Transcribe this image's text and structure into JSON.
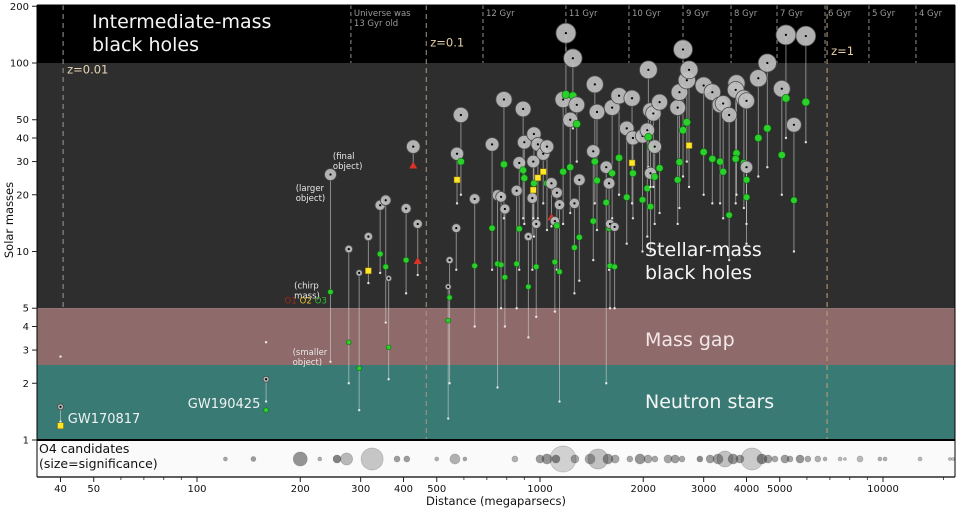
{
  "figure": {
    "background": "#ffffff"
  },
  "axes": {
    "x": {
      "label": "Distance (megaparsecs)",
      "scale": "log",
      "ticks": [
        40,
        50,
        100,
        200,
        300,
        400,
        500,
        1000,
        2000,
        3000,
        4000,
        5000,
        10000
      ],
      "minor_ticks": [
        60,
        70,
        80,
        90,
        600,
        700,
        800,
        900,
        6000,
        7000,
        8000,
        9000,
        15000
      ],
      "range_mpc": [
        34,
        16500
      ]
    },
    "y": {
      "label": "Solar masses",
      "scale": "log",
      "ticks": [
        1,
        2,
        3,
        4,
        5,
        10,
        20,
        30,
        40,
        50,
        100,
        200
      ],
      "range_msun": [
        1,
        200
      ]
    }
  },
  "bands": [
    {
      "label_lines": [
        "Intermediate-mass",
        "black holes"
      ],
      "m_range": [
        100,
        200
      ],
      "color": "#000000"
    },
    {
      "label_lines": [
        "Stellar-mass",
        "black holes"
      ],
      "m_range": [
        5,
        100
      ],
      "color": "#2f2e2e"
    },
    {
      "label_lines": [
        "Mass gap"
      ],
      "m_range": [
        2.5,
        5
      ],
      "color": "#8f6a6a"
    },
    {
      "label_lines": [
        "Neutron stars"
      ],
      "m_range": [
        1,
        2.5
      ],
      "color": "#3a7a74"
    }
  ],
  "redshift_lines": [
    {
      "label": "z=0.01",
      "d": 40.7,
      "extent": "upper",
      "line_color": "#9b9b9b",
      "label_color": "#e6d4b4",
      "label_m": 88
    },
    {
      "label": "z=0.1",
      "d": 466,
      "extent": "full",
      "line_color": "#a89a85",
      "label_color": "#e6cfa6",
      "label_m": 122
    },
    {
      "label": "z=1",
      "d": 6870,
      "extent": "full",
      "line_color": "#c2a178",
      "label_color": "#e6cfa6",
      "label_m": 110
    }
  ],
  "age_lines": {
    "line_color": "#8f8f8f",
    "label_color": "#9a9a9a",
    "items": [
      {
        "label_lines": [
          "Universe was",
          "13 Gyr old"
        ],
        "d": 281
      },
      {
        "label_lines": [
          "12 Gyr"
        ],
        "d": 682
      },
      {
        "label_lines": [
          "11 Gyr"
        ],
        "d": 1190
      },
      {
        "label_lines": [
          "10 Gyr"
        ],
        "d": 1817
      },
      {
        "label_lines": [
          "9 Gyr"
        ],
        "d": 2612
      },
      {
        "label_lines": [
          "8 Gyr"
        ],
        "d": 3606
      },
      {
        "label_lines": [
          "7 Gyr"
        ],
        "d": 4909
      },
      {
        "label_lines": [
          "6 Gyr"
        ],
        "d": 6776
      },
      {
        "label_lines": [
          "5 Gyr"
        ],
        "d": 9100
      },
      {
        "label_lines": [
          "4 Gyr"
        ],
        "d": 12475
      }
    ]
  },
  "annotations": [
    {
      "lines": [
        "GW170817"
      ],
      "d": 42,
      "m": 1.23,
      "color": "#eef2f2",
      "size": 13
    },
    {
      "lines": [
        "GW190425"
      ],
      "d": 94,
      "m": 1.48,
      "color": "#eef2f2",
      "size": 13
    },
    {
      "lines": [
        "(final",
        "object)"
      ],
      "d": 249,
      "m": 31,
      "color": "#e8e8e8",
      "size": 8.5
    },
    {
      "lines": [
        "(larger",
        "object)"
      ],
      "d": 194,
      "m": 21,
      "color": "#e8e8e8",
      "size": 8.5
    },
    {
      "lines": [
        "(chirp",
        "mass)"
      ],
      "d": 192,
      "m": 6.35,
      "color": "#e8e8e8",
      "size": 8.5
    },
    {
      "lines": [
        "(smaller",
        "object)"
      ],
      "d": 190,
      "m": 2.82,
      "color": "#e8e8e8",
      "size": 8.5
    }
  ],
  "run_legend": {
    "d": 180,
    "m": 5.3,
    "size": 8.5,
    "items": [
      {
        "label": "O1",
        "color": "#a5281b"
      },
      {
        "label": "O2",
        "color": "#e3c12c"
      },
      {
        "label": "O3",
        "color": "#2dbf2d"
      }
    ]
  },
  "marker_style": {
    "larger_fill": "#bfbfbf",
    "larger_stroke": "#4a4a4a",
    "center_dot": "#000000",
    "line_color": "#d8d8d8",
    "small_dot": "#f0f0f0",
    "runs": {
      "O1": {
        "color": "#d93425",
        "shape": "triangle"
      },
      "O2": {
        "color": "#ffe627",
        "shape": "square"
      },
      "O3": {
        "color": "#2bd12b",
        "shape": "circle"
      }
    }
  },
  "o4_strip": {
    "label_lines": [
      "O4 candidates",
      "(size=significance)"
    ],
    "label_color": "#111111",
    "background": "#fafafa",
    "bubble_color": "#404040"
  },
  "chart_data": {
    "type": "scatter",
    "xlabel": "Distance (megaparsecs)",
    "ylabel": "Solar masses",
    "x_range_mpc": [
      34,
      16500
    ],
    "y_range_msun": [
      1,
      200
    ],
    "events_fields": [
      "distance_mpc",
      "larger_mass",
      "chirp_mass",
      "smaller_mass",
      "run",
      "final_mass",
      "name"
    ],
    "events": [
      [
        40,
        1.5,
        1.19,
        1.25,
        "O2",
        2.77,
        "GW170817"
      ],
      [
        159,
        2.1,
        1.44,
        1.6,
        "O3",
        3.3,
        "GW190425"
      ],
      [
        245,
        25.6,
        6.1,
        2.6,
        "O3",
        null,
        null
      ],
      [
        277,
        10.3,
        3.3,
        2.0,
        "O3",
        null,
        null
      ],
      [
        297,
        7.7,
        2.4,
        1.44,
        "O3",
        null,
        null
      ],
      [
        316,
        12.0,
        7.9,
        6.8,
        "O2",
        null,
        null
      ],
      [
        342,
        17.6,
        9.7,
        7.7,
        "O3",
        null,
        null
      ],
      [
        355,
        18.7,
        8.3,
        4.2,
        "O3",
        null,
        null
      ],
      [
        362,
        7.2,
        3.1,
        2.1,
        "O3",
        null,
        null
      ],
      [
        407,
        16.9,
        9.0,
        6.0,
        "O3",
        null,
        null
      ],
      [
        427,
        36,
        28.6,
        29,
        "O1",
        null,
        null
      ],
      [
        440,
        14,
        8.9,
        7.5,
        "O1",
        null,
        null
      ],
      [
        573,
        33,
        24,
        18,
        "O2",
        null,
        null
      ],
      [
        545,
        9.0,
        5.7,
        2.0,
        "O3",
        null,
        null
      ],
      [
        540,
        6.5,
        4.3,
        1.3,
        "O3",
        null,
        null
      ],
      [
        588,
        53,
        30,
        20,
        "O3",
        null,
        null
      ],
      [
        570,
        13.3,
        null,
        8,
        null,
        null,
        null
      ],
      [
        645,
        19,
        8.4,
        4,
        "O3",
        null,
        null
      ],
      [
        725,
        37,
        13.3,
        8,
        "O3",
        null,
        null
      ],
      [
        752,
        19.9,
        8.6,
        1.9,
        "O3",
        null,
        null
      ],
      [
        770,
        19.5,
        8.5,
        5,
        "O3",
        null,
        null
      ],
      [
        785,
        64,
        29,
        15,
        "O3",
        null,
        null
      ],
      [
        790,
        16.8,
        7.3,
        4,
        "O3",
        null,
        null
      ],
      [
        855,
        21,
        8.6,
        5,
        "O3",
        null,
        null
      ],
      [
        870,
        29.5,
        13.2,
        8,
        "O3",
        null,
        null
      ],
      [
        893,
        57,
        27,
        15,
        "O3",
        null,
        null
      ],
      [
        900,
        38,
        24.5,
        14,
        "O3",
        null,
        null
      ],
      [
        925,
        12,
        6.5,
        3.5,
        "O3",
        null,
        null
      ],
      [
        950,
        19.2,
        null,
        8,
        null,
        null,
        null
      ],
      [
        956,
        30,
        21.2,
        15,
        "O2",
        null,
        null
      ],
      [
        960,
        42,
        23,
        12,
        "O3",
        null,
        null
      ],
      [
        975,
        14,
        8.3,
        4.5,
        "O3",
        null,
        null
      ],
      [
        986,
        37,
        24.6,
        15,
        "O2",
        null,
        null
      ],
      [
        1022,
        33,
        26.5,
        18,
        "O2",
        null,
        null
      ],
      [
        1048,
        36,
        23,
        13,
        "O3",
        null,
        null
      ],
      [
        1080,
        23,
        15.2,
        13.6,
        "O1",
        null,
        null
      ],
      [
        1105,
        14.5,
        8.8,
        4.8,
        "O3",
        null,
        null
      ],
      [
        1120,
        20.5,
        13.7,
        8,
        "O3",
        null,
        null
      ],
      [
        1140,
        17.7,
        7.8,
        1.6,
        "O3",
        null,
        null
      ],
      [
        1168,
        64,
        26.5,
        14,
        "O3",
        null,
        null
      ],
      [
        1190,
        144,
        68,
        48,
        "O3",
        null,
        null
      ],
      [
        1247,
        106,
        67,
        45,
        "O3",
        null,
        null
      ],
      [
        1225,
        50,
        28,
        16,
        "O3",
        null,
        null
      ],
      [
        1260,
        18,
        10.5,
        6,
        "O3",
        null,
        null
      ],
      [
        1280,
        60,
        47.5,
        30,
        "O3",
        null,
        null
      ],
      [
        1302,
        24,
        11.9,
        7,
        "O3",
        null,
        null
      ],
      [
        1430,
        34,
        14.5,
        9,
        "O3",
        null,
        null
      ],
      [
        1445,
        77,
        30,
        18,
        "O3",
        null,
        null
      ],
      [
        1466,
        55,
        23.8,
        13,
        "O3",
        null,
        null
      ],
      [
        1560,
        28,
        18.2,
        2.0,
        "O3",
        null,
        null
      ],
      [
        1590,
        23,
        13.3,
        8,
        "O3",
        null,
        null
      ],
      [
        1600,
        14,
        8.4,
        5,
        "O3",
        null,
        null
      ],
      [
        1623,
        58,
        26,
        15,
        "O3",
        null,
        null
      ],
      [
        1650,
        13.5,
        8.3,
        5,
        "O3",
        null,
        null
      ],
      [
        1700,
        67,
        31.4,
        20,
        "O3",
        null,
        null
      ],
      [
        1790,
        45,
        19.4,
        11,
        "O3",
        null,
        null
      ],
      [
        1855,
        65,
        29.5,
        18,
        "O2",
        null,
        null
      ],
      [
        1866,
        40,
        26,
        15,
        "O3",
        null,
        null
      ],
      [
        1990,
        41,
        18.8,
        10,
        "O3",
        null,
        null
      ],
      [
        2055,
        44,
        21.6,
        12,
        "O3",
        null,
        null
      ],
      [
        2070,
        92,
        40.5,
        28,
        "O3",
        null,
        null
      ],
      [
        2100,
        56,
        36,
        22,
        "O3",
        null,
        null
      ],
      [
        2100,
        26,
        17.3,
        10,
        "O3",
        null,
        null
      ],
      [
        2140,
        54,
        35.6,
        22,
        "O3",
        null,
        null
      ],
      [
        2160,
        36,
        24.9,
        14,
        "O3",
        null,
        null
      ],
      [
        2232,
        62,
        27.7,
        16,
        "O3",
        null,
        null
      ],
      [
        2520,
        58,
        24,
        14,
        "O3",
        null,
        null
      ],
      [
        2612,
        118,
        44,
        25,
        "O3",
        null,
        null
      ],
      [
        2550,
        70,
        29.8,
        17,
        "O3",
        null,
        null
      ],
      [
        2680,
        81,
        48.5,
        30,
        "O3",
        null,
        null
      ],
      [
        2720,
        92,
        36.5,
        22,
        "O2",
        null,
        null
      ],
      [
        3000,
        76,
        33.7,
        20,
        "O3",
        null,
        null
      ],
      [
        3180,
        70,
        31,
        18,
        "O3",
        null,
        null
      ],
      [
        3350,
        60,
        30,
        18,
        "O3",
        null,
        null
      ],
      [
        3420,
        61,
        26.5,
        15,
        "O3",
        null,
        null
      ],
      [
        3560,
        53,
        15.6,
        9,
        "O3",
        null,
        null
      ],
      [
        3740,
        78,
        33.2,
        20,
        "O3",
        null,
        null
      ],
      [
        3720,
        72,
        31,
        18,
        "O3",
        null,
        null
      ],
      [
        3930,
        65,
        29.5,
        17,
        "O3",
        null,
        null
      ],
      [
        4000,
        63,
        24,
        14,
        "O3",
        null,
        null
      ],
      [
        4000,
        28,
        19.4,
        11,
        "O3",
        null,
        null
      ],
      [
        4330,
        83,
        40,
        25,
        "O3",
        null,
        null
      ],
      [
        4600,
        100,
        45,
        28,
        "O3",
        null,
        null
      ],
      [
        5070,
        73,
        32.5,
        20,
        "O3",
        null,
        null
      ],
      [
        5212,
        141,
        65,
        40,
        "O3",
        null,
        null
      ],
      [
        5957,
        139,
        62,
        38,
        "O3",
        null,
        null
      ],
      [
        5500,
        47,
        18.7,
        10,
        "O3",
        null,
        null
      ]
    ],
    "o4_fields": [
      "distance_mpc",
      "size",
      "shade"
    ],
    "o4_candidates": [
      [
        121,
        2,
        0.45
      ],
      [
        146,
        2.5,
        0.5
      ],
      [
        200,
        7,
        0.55
      ],
      [
        228,
        2,
        0.4
      ],
      [
        256,
        4,
        0.65
      ],
      [
        273,
        6,
        0.35
      ],
      [
        324,
        11,
        0.28
      ],
      [
        383,
        3,
        0.5
      ],
      [
        409,
        3,
        0.5
      ],
      [
        500,
        2,
        0.4
      ],
      [
        565,
        5,
        0.4
      ],
      [
        604,
        2,
        0.45
      ],
      [
        845,
        3,
        0.4
      ],
      [
        1000,
        4,
        0.5
      ],
      [
        1048,
        5,
        0.55
      ],
      [
        1113,
        4,
        0.6
      ],
      [
        1167,
        13,
        0.22
      ],
      [
        1264,
        4,
        0.45
      ],
      [
        1399,
        5,
        0.45
      ],
      [
        1476,
        10,
        0.3
      ],
      [
        1578,
        5,
        0.55
      ],
      [
        1656,
        4,
        0.45
      ],
      [
        1828,
        3,
        0.45
      ],
      [
        1957,
        5,
        0.55
      ],
      [
        2065,
        4,
        0.45
      ],
      [
        2163,
        3,
        0.45
      ],
      [
        2362,
        4,
        0.45
      ],
      [
        2477,
        4,
        0.5
      ],
      [
        2594,
        3,
        0.45
      ],
      [
        2925,
        3,
        0.6
      ],
      [
        3133,
        4,
        0.5
      ],
      [
        3304,
        5,
        0.5
      ],
      [
        3461,
        8,
        0.3
      ],
      [
        3655,
        5,
        0.55
      ],
      [
        3828,
        4,
        0.5
      ],
      [
        4150,
        11,
        0.25
      ],
      [
        4436,
        5,
        0.6
      ],
      [
        4624,
        4,
        0.5
      ],
      [
        4842,
        3,
        0.45
      ],
      [
        5176,
        4,
        0.5
      ],
      [
        5358,
        3,
        0.45
      ],
      [
        5728,
        4,
        0.55
      ],
      [
        6039,
        3,
        0.45
      ],
      [
        6457,
        3,
        0.4
      ],
      [
        6776,
        2,
        0.4
      ],
      [
        7499,
        2,
        0.35
      ],
      [
        7745,
        1.5,
        0.35
      ],
      [
        8570,
        3,
        0.35
      ],
      [
        9795,
        2,
        0.4
      ],
      [
        10139,
        2,
        0.4
      ],
      [
        12823,
        2,
        0.35
      ],
      [
        15668,
        1.5,
        0.35
      ],
      [
        16000,
        1.5,
        0.3
      ]
    ]
  }
}
